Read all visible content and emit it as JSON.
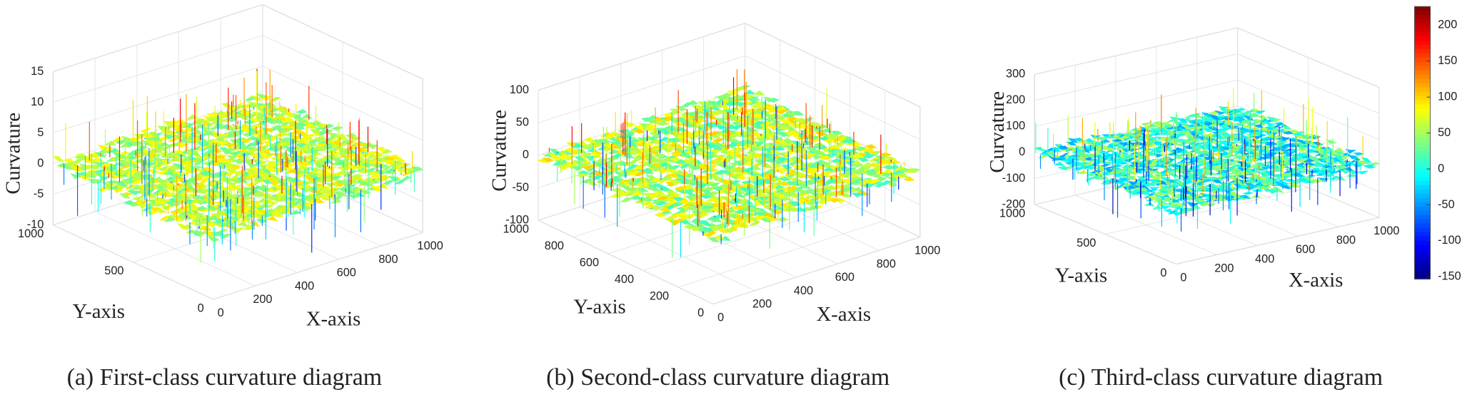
{
  "chart_data": [
    {
      "type": "surface",
      "caption": "(a) First-class curvature diagram",
      "xlabel": "X-axis",
      "ylabel": "Y-axis",
      "zlabel": "Curvature",
      "xlim": [
        0,
        1000
      ],
      "ylim": [
        0,
        1000
      ],
      "zlim": [
        -10,
        15
      ],
      "xticks": [
        0,
        200,
        400,
        600,
        800,
        1000
      ],
      "yticks": [
        0,
        500,
        1000
      ],
      "zticks": [
        -10,
        -5,
        0,
        5,
        10,
        15
      ],
      "grid": true,
      "colormap": "jet"
    },
    {
      "type": "surface",
      "caption": "(b) Second-class curvature diagram",
      "xlabel": "X-axis",
      "ylabel": "Y-axis",
      "zlabel": "Curvature",
      "xlim": [
        0,
        1000
      ],
      "ylim": [
        0,
        1000
      ],
      "zlim": [
        -100,
        100
      ],
      "xticks": [
        0,
        200,
        400,
        600,
        800,
        1000
      ],
      "yticks": [
        0,
        200,
        400,
        600,
        800,
        1000
      ],
      "zticks": [
        -100,
        -50,
        0,
        50,
        100
      ],
      "grid": true,
      "colormap": "jet"
    },
    {
      "type": "surface",
      "caption": "(c) Third-class curvature diagram",
      "xlabel": "X-axis",
      "ylabel": "Y-axis",
      "zlabel": "Curvature",
      "xlim": [
        0,
        1000
      ],
      "ylim": [
        0,
        1000
      ],
      "zlim": [
        -200,
        300
      ],
      "xticks": [
        0,
        200,
        400,
        600,
        800,
        1000
      ],
      "yticks": [
        0,
        500,
        1000
      ],
      "zticks": [
        -200,
        -100,
        0,
        100,
        200,
        300
      ],
      "grid": true,
      "colormap": "jet",
      "colorbar": {
        "lim": [
          -153,
          226
        ],
        "ticks": [
          -150,
          -100,
          -50,
          0,
          50,
          100,
          150,
          200
        ]
      }
    }
  ]
}
